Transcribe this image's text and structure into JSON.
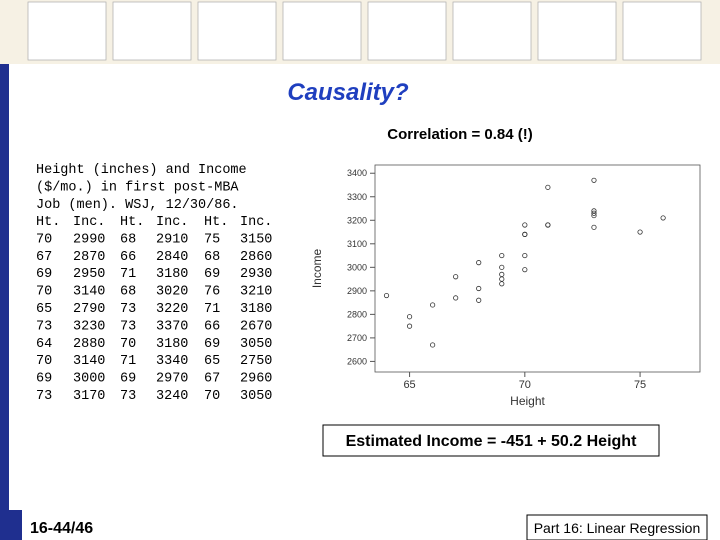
{
  "title": "Causality?",
  "subtitle": "Correlation = 0.84 (!)",
  "description": [
    "Height (inches) and Income",
    "($/mo.) in first post-MBA",
    "Job (men). WSJ, 12/30/86."
  ],
  "table": {
    "header": [
      "Ht.",
      "Inc.",
      "Ht.",
      "Inc.",
      "Ht.",
      "Inc."
    ],
    "rows": [
      [
        70,
        2990,
        68,
        2910,
        75,
        3150
      ],
      [
        67,
        2870,
        66,
        2840,
        68,
        2860
      ],
      [
        69,
        2950,
        71,
        3180,
        69,
        2930
      ],
      [
        70,
        3140,
        68,
        3020,
        76,
        3210
      ],
      [
        65,
        2790,
        73,
        3220,
        71,
        3180
      ],
      [
        73,
        3230,
        73,
        3370,
        66,
        2670
      ],
      [
        64,
        2880,
        70,
        3180,
        69,
        3050
      ],
      [
        70,
        3140,
        71,
        3340,
        65,
        2750
      ],
      [
        69,
        3000,
        69,
        2970,
        67,
        2960
      ],
      [
        73,
        3170,
        73,
        3240,
        70,
        3050
      ]
    ]
  },
  "chart_data": {
    "type": "scatter",
    "x_label": "Height",
    "y_label": "Income",
    "x": [
      70,
      67,
      69,
      70,
      65,
      73,
      64,
      70,
      69,
      73,
      68,
      66,
      71,
      68,
      73,
      73,
      70,
      71,
      69,
      73,
      75,
      68,
      69,
      76,
      71,
      66,
      69,
      65,
      67,
      70
    ],
    "y": [
      2990,
      2870,
      2950,
      3140,
      2790,
      3230,
      2880,
      3140,
      3000,
      3170,
      2910,
      2840,
      3180,
      3020,
      3220,
      3370,
      3180,
      3340,
      2970,
      3240,
      3150,
      2860,
      2930,
      3210,
      3180,
      2670,
      3050,
      2750,
      2960,
      3050
    ],
    "xlim": [
      63.5,
      77.6
    ],
    "xticks": [
      65,
      70,
      75
    ],
    "ylim": [
      2555,
      3435
    ],
    "yticks": [
      2600,
      2700,
      2800,
      2900,
      3000,
      3100,
      3200,
      3300,
      3400
    ]
  },
  "equation": "Estimated Income = -451 + 50.2 Height",
  "footer": {
    "page": "16-44/46",
    "section": "Part 16: Linear Regression"
  }
}
